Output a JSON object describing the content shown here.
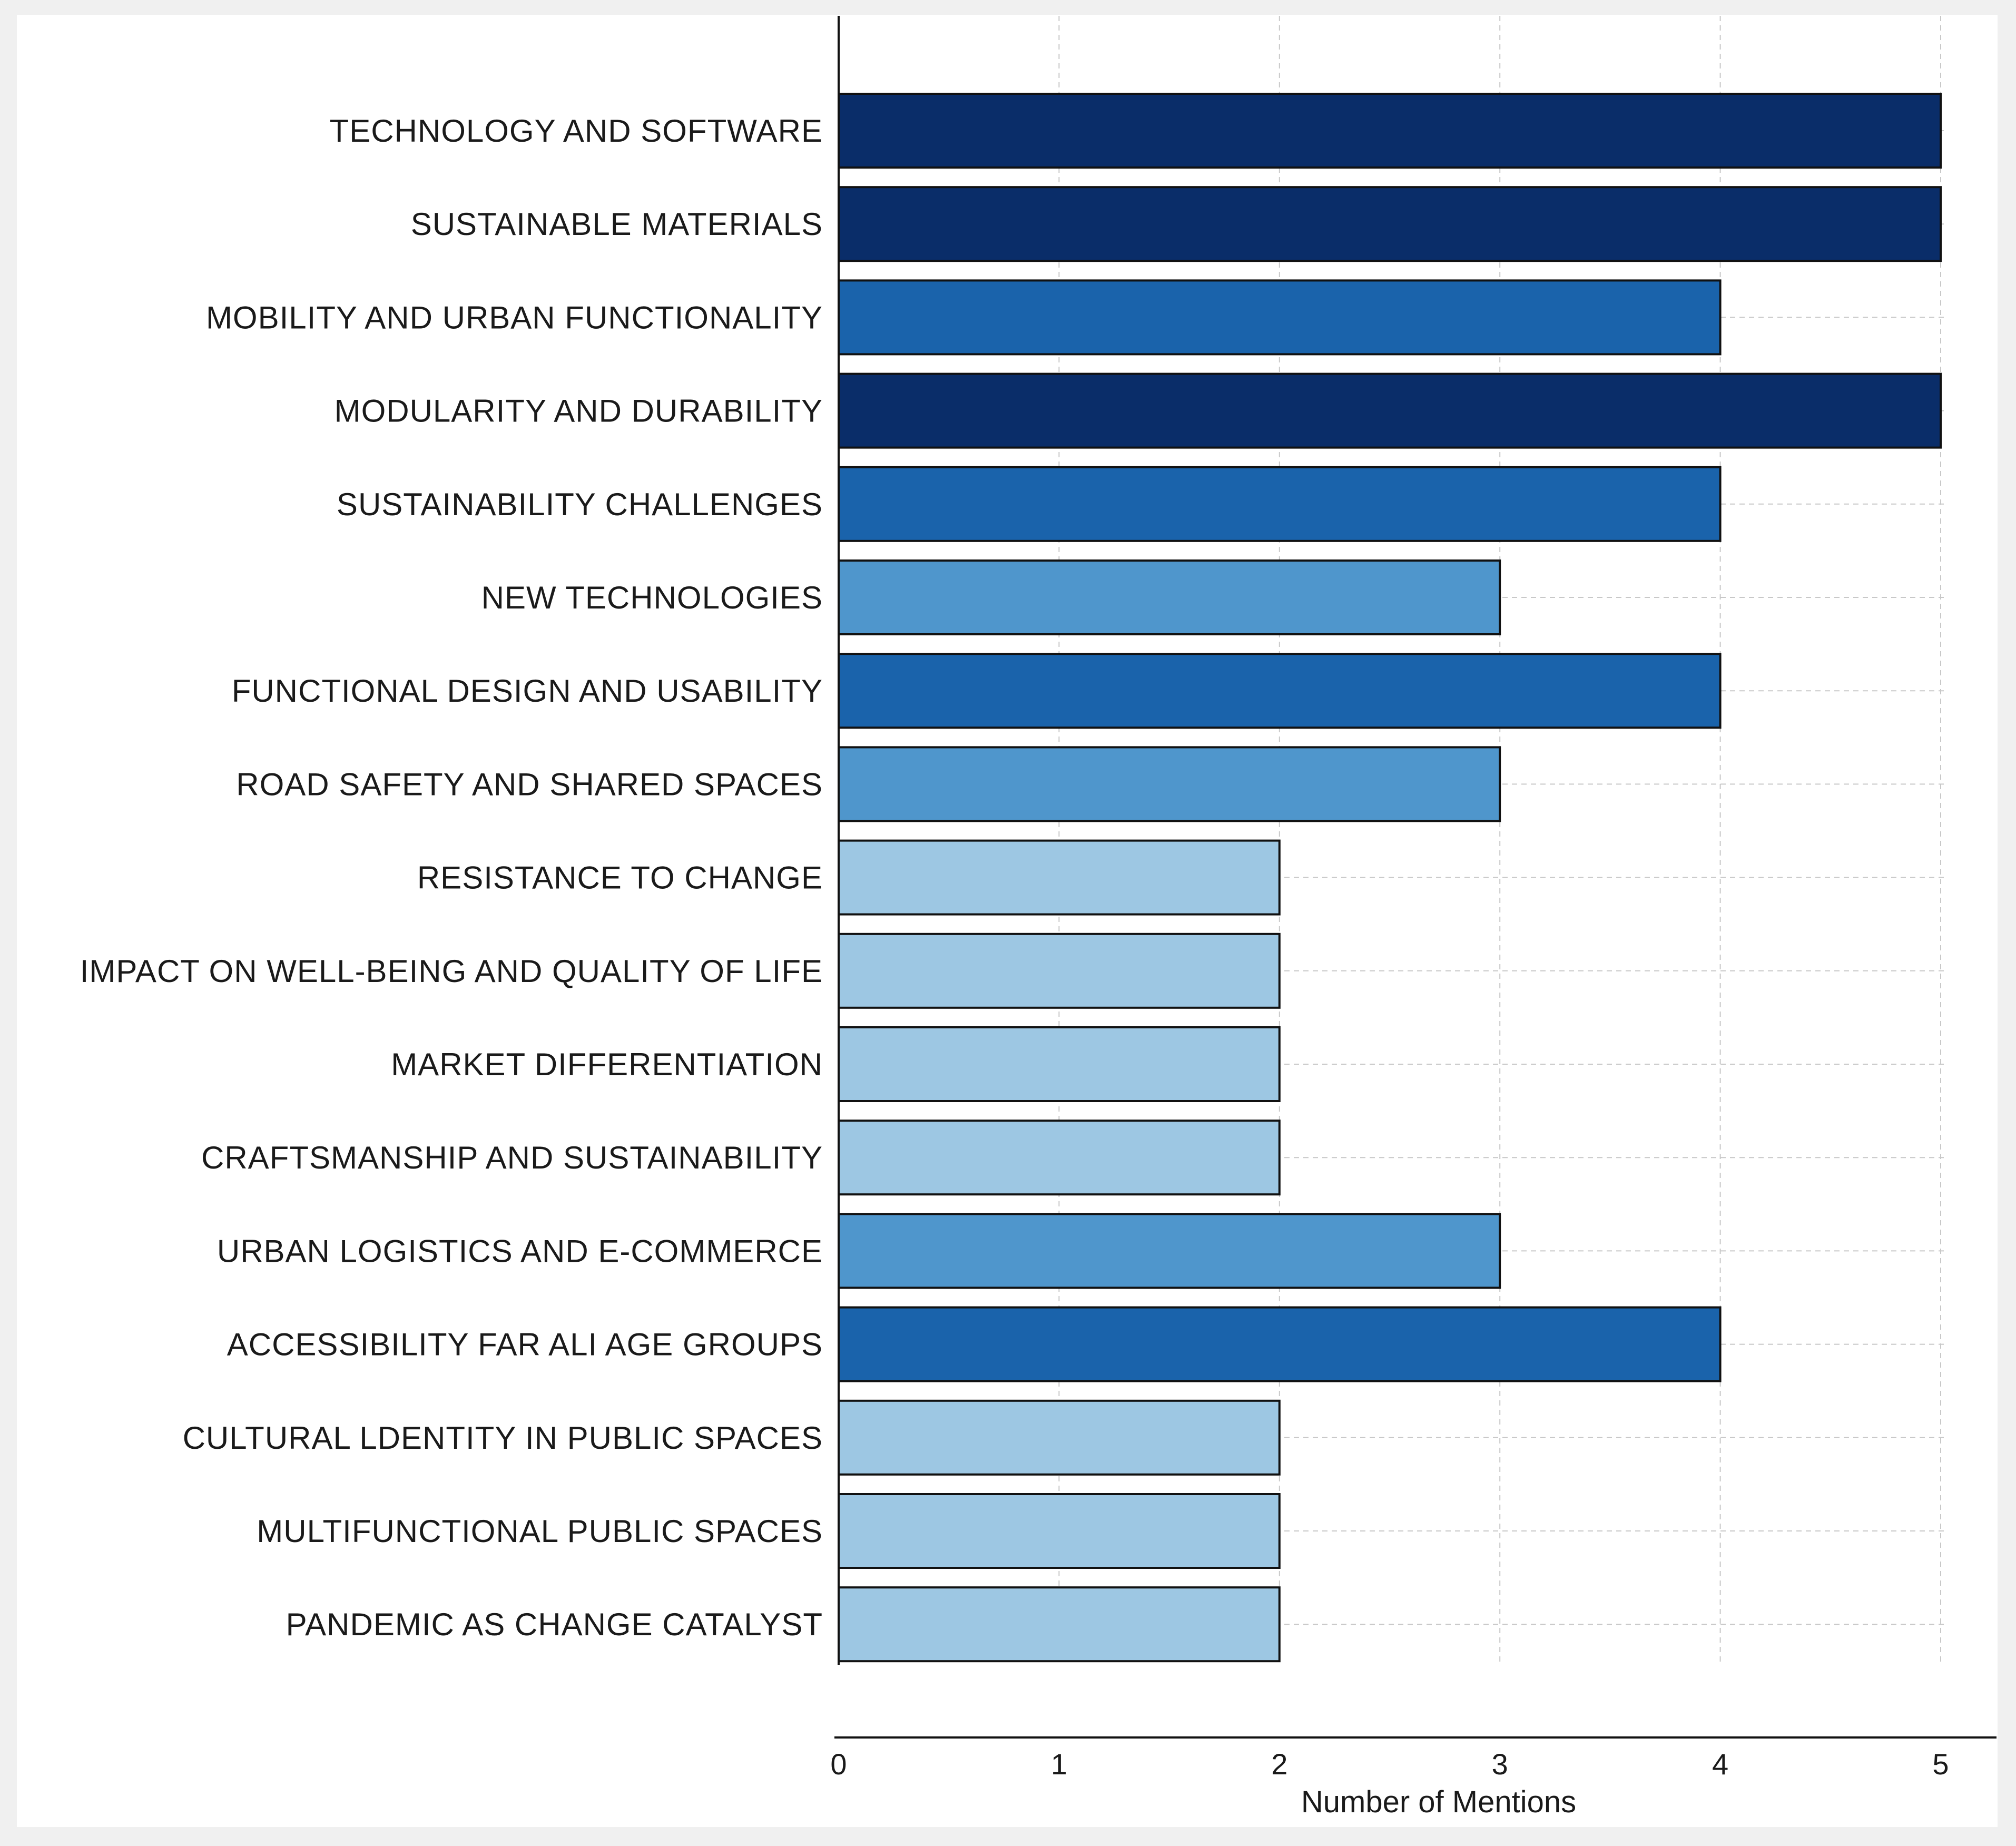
{
  "chart_data": {
    "type": "bar",
    "orientation": "horizontal",
    "title": "",
    "xlabel": "Number of Mentions",
    "ylabel": "",
    "xlim": [
      0,
      5
    ],
    "xticks": [
      0,
      1,
      2,
      3,
      4,
      5
    ],
    "xtick_labels": [
      "0",
      "1",
      "2",
      "3",
      "4",
      "5"
    ],
    "grid": true,
    "categories": [
      "TECHNOLOGY AND SOFTWARE",
      "SUSTAINABLE MATERIALS",
      "MOBILITY AND URBAN FUNCTIONALITY",
      "MODULARITY AND DURABILITY",
      "SUSTAINABILITY CHALLENGES",
      "NEW TECHNOLOGIES",
      "FUNCTIONAL DESIGN AND USABILITY",
      "ROAD SAFETY AND SHARED SPACES",
      "RESISTANCE TO CHANGE",
      "IMPACT ON WELL-BEING AND QUALITY OF LIFE",
      "MARKET DIFFERENTIATION",
      "CRAFTSMANSHIP AND SUSTAINABILITY",
      "URBAN LOGISTICS AND E-COMMERCE",
      "ACCESSIBILITY FAR ALI AGE GROUPS",
      "CULTURAL LDENTITY IN PUBLIC SPACES",
      "MULTIFUNCTIONAL PUBLIC SPACES",
      "PANDEMIC AS CHANGE CATALYST"
    ],
    "values": [
      5,
      5,
      4,
      5,
      4,
      3,
      4,
      3,
      2,
      2,
      2,
      2,
      3,
      4,
      2,
      2,
      2
    ],
    "color_scale": {
      "2": "#9dc7e3",
      "3": "#4f96cc",
      "4": "#1a63ab",
      "5": "#0a2d69"
    }
  }
}
